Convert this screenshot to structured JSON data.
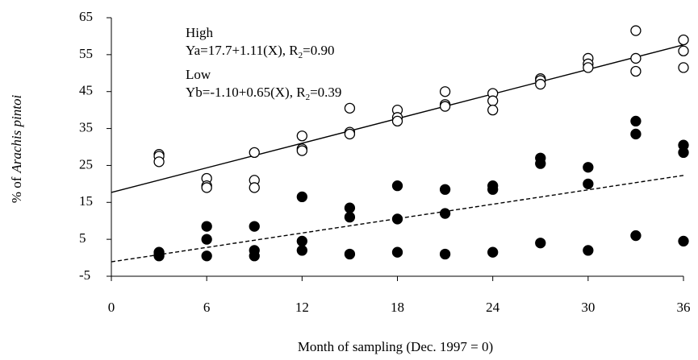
{
  "chart_data": {
    "type": "scatter",
    "xlabel": "Month of sampling (Dec. 1997 = 0)",
    "ylabel": [
      "% of",
      "Arachis pintoi"
    ],
    "xlim": [
      0,
      36
    ],
    "xticks": [
      0,
      6,
      12,
      18,
      24,
      30,
      36
    ],
    "ylim": [
      -5,
      65
    ],
    "yticks": [
      -5,
      5,
      15,
      25,
      35,
      45,
      55,
      65
    ],
    "grid": false,
    "series": [
      {
        "name": "High",
        "color": "#000000",
        "marker": "open",
        "x": [
          3,
          3,
          3,
          6,
          6,
          6,
          9,
          9,
          9,
          12,
          12,
          12,
          15,
          15,
          15,
          18,
          18,
          18,
          21,
          21,
          21,
          24,
          24,
          24,
          27,
          27,
          27,
          30,
          30,
          30,
          33,
          33,
          33,
          36,
          36,
          36
        ],
        "values": [
          28,
          27.5,
          26,
          21.5,
          19.5,
          19,
          28.5,
          21,
          19,
          33,
          29.5,
          29,
          40.5,
          34,
          33.5,
          40,
          38,
          37,
          45,
          41.5,
          41,
          44.5,
          42.5,
          40,
          48.5,
          48,
          47,
          54,
          52.5,
          51.5,
          61.5,
          54,
          50.5,
          59,
          56,
          51.5
        ]
      },
      {
        "name": "Low",
        "color": "#000000",
        "marker": "filled",
        "x": [
          3,
          3,
          3,
          6,
          6,
          6,
          9,
          9,
          9,
          12,
          12,
          12,
          15,
          15,
          15,
          18,
          18,
          18,
          21,
          21,
          21,
          24,
          24,
          24,
          27,
          27,
          27,
          30,
          30,
          30,
          33,
          33,
          33,
          36,
          36,
          36
        ],
        "values": [
          1.5,
          1,
          0.5,
          8.5,
          5,
          0.5,
          8.5,
          2,
          0.5,
          16.5,
          4.5,
          2,
          13.5,
          11,
          1,
          19.5,
          10.5,
          1.5,
          18.5,
          12,
          1,
          19.5,
          18.5,
          1.5,
          27,
          25.5,
          4,
          24.5,
          20,
          2,
          37,
          33.5,
          6,
          30.5,
          28.5,
          4.5
        ]
      }
    ],
    "fits": [
      {
        "intercept": 17.7,
        "slope": 1.11,
        "style": "solid"
      },
      {
        "intercept": -1.1,
        "slope": 0.65,
        "style": "dashed"
      }
    ],
    "equations": [
      {
        "label": "High",
        "text": [
          "Ya=17.7+1.11(X), R",
          "2",
          "=0.90"
        ]
      },
      {
        "label": "Low",
        "text": [
          "Yb=-1.10+0.65(X), R",
          "2",
          "=0.39"
        ]
      }
    ]
  }
}
